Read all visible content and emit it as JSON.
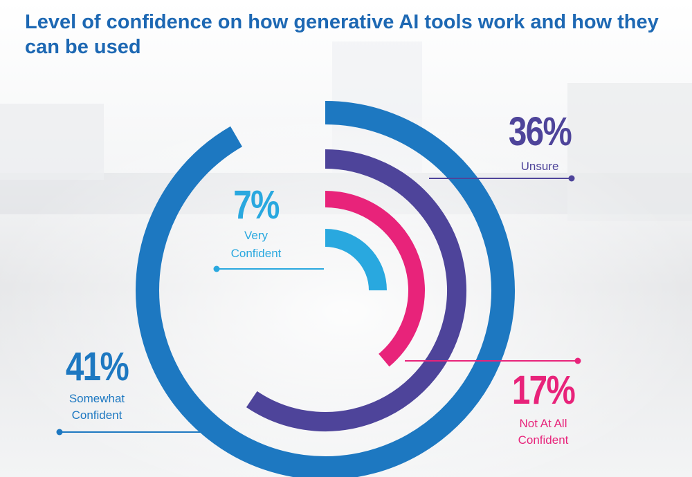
{
  "title": "Level of confidence on how generative AI tools work and how they can be used",
  "colors": {
    "title": "#1d68b3",
    "very_confident": "#29a8df",
    "not_at_all_confident": "#e8237a",
    "unsure": "#4e449a",
    "somewhat_confident": "#1d78c1"
  },
  "chart_data": {
    "type": "radial-bar",
    "title": "Level of confidence on how generative AI tools work and how they can be used",
    "series": [
      {
        "label": "Very Confident",
        "value": 7,
        "display": "7%"
      },
      {
        "label": "Not At All Confident",
        "value": 17,
        "display": "17%"
      },
      {
        "label": "Unsure",
        "value": 36,
        "display": "36%"
      },
      {
        "label": "Somewhat Confident",
        "value": 41,
        "display": "41%"
      }
    ]
  },
  "labels": {
    "very_confident": {
      "pct": "7%",
      "line1": "Very",
      "line2": "Confident"
    },
    "unsure": {
      "pct": "36%",
      "line1": "Unsure"
    },
    "not_at_all_confident": {
      "pct": "17%",
      "line1": "Not At All",
      "line2": "Confident"
    },
    "somewhat_confident": {
      "pct": "41%",
      "line1": "Somewhat",
      "line2": "Confident"
    }
  }
}
